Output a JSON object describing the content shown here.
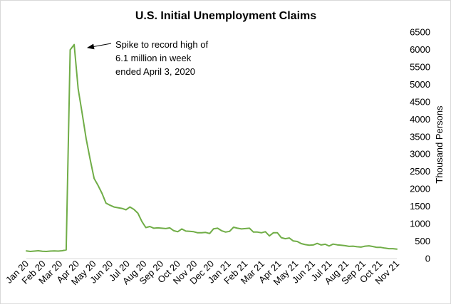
{
  "chart_data": {
    "type": "line",
    "title": "U.S. Initial Unemployment Claims",
    "xlabel": "",
    "ylabel": "Thousand Persons",
    "ylim": [
      0,
      6500
    ],
    "y_ticks": [
      "0",
      "500",
      "1000",
      "1500",
      "2000",
      "2500",
      "3000",
      "3500",
      "4000",
      "4500",
      "5000",
      "5500",
      "6000",
      "6500"
    ],
    "x_tick_labels": [
      "Jan 20",
      "Feb 20",
      "Mar 20",
      "Apr 20",
      "May 20",
      "Jun 20",
      "Jul 20",
      "Aug 20",
      "Sep 20",
      "Oct 20",
      "Nov 20",
      "Dec 20",
      "Jan 21",
      "Feb 21",
      "Mar 21",
      "Apr 21",
      "May 21",
      "Jun 21",
      "Jul 21",
      "Aug 21",
      "Sep 21",
      "Oct 21",
      "Nov 21"
    ],
    "grid": false,
    "legend": "none",
    "colors": {
      "series": "#70ad47",
      "axis": "#d9d9d9",
      "arrow": "#000000"
    },
    "series": [
      {
        "values": [
          220,
          205,
          215,
          225,
          210,
          205,
          215,
          220,
          215,
          225,
          250,
          5990,
          6140,
          4870,
          4170,
          3440,
          2850,
          2300,
          2100,
          1870,
          1590,
          1530,
          1480,
          1460,
          1440,
          1400,
          1480,
          1410,
          1300,
          1060,
          890,
          920,
          870,
          880,
          870,
          860,
          880,
          800,
          770,
          850,
          790,
          780,
          770,
          740,
          740,
          750,
          720,
          855,
          870,
          800,
          760,
          780,
          900,
          870,
          850,
          860,
          870,
          760,
          760,
          740,
          770,
          650,
          740,
          740,
          600,
          570,
          590,
          505,
          490,
          430,
          400,
          385,
          390,
          435,
          390,
          410,
          360,
          415,
          395,
          385,
          370,
          350,
          355,
          340,
          330,
          355,
          365,
          345,
          320,
          320,
          300,
          285,
          285,
          270
        ]
      }
    ],
    "annotations": [
      {
        "lines": [
          "Spike to record high of",
          "6.1 million in week",
          "ended April 3, 2020"
        ]
      }
    ]
  }
}
